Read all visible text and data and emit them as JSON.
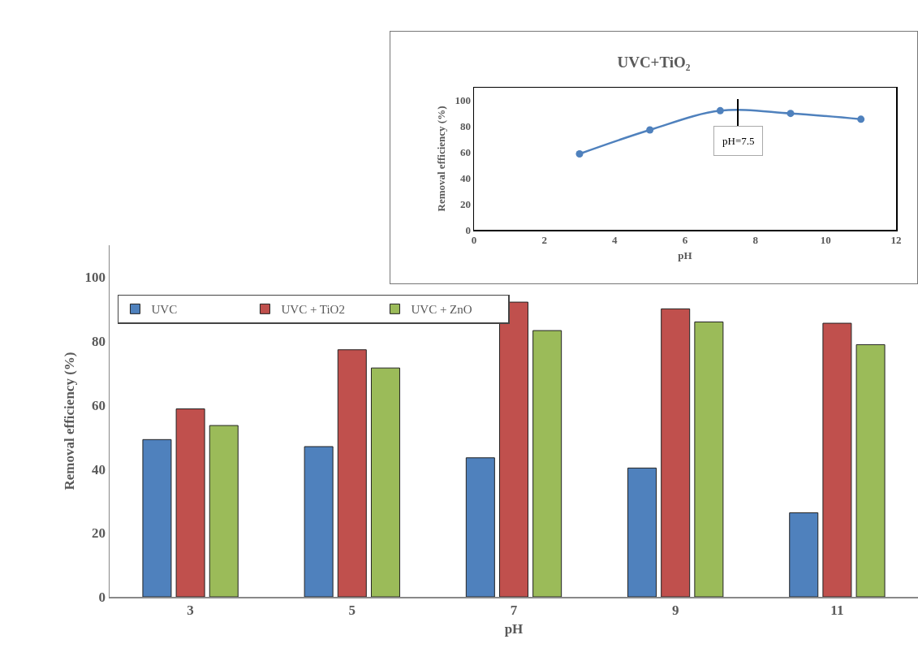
{
  "chart_data": [
    {
      "type": "line",
      "title": "UVC+TiO₂",
      "xlabel": "pH",
      "ylabel": "Removal efficiency (%)",
      "x": [
        3,
        5,
        7,
        9,
        11
      ],
      "series": [
        {
          "color": "#4f81bd",
          "values": [
            58.8,
            77.3,
            92.2,
            90.1,
            85.6
          ]
        }
      ],
      "xlim": [
        0,
        12
      ],
      "xticks": [
        0,
        2,
        4,
        6,
        8,
        10,
        12
      ],
      "ylim": [
        0,
        110
      ],
      "yticks": [
        0,
        20,
        40,
        60,
        80,
        100
      ],
      "ref_lines": [
        {
          "axis": "x",
          "value": 7.5,
          "label": "pH=7.5",
          "color": "#000000"
        }
      ],
      "grid": false,
      "legend": false,
      "marker": "circle",
      "line_style": "solid"
    },
    {
      "type": "bar",
      "xlabel": "pH",
      "ylabel": "Removal efficiency (%)",
      "categories": [
        "3",
        "5",
        "7",
        "9",
        "11"
      ],
      "series": [
        {
          "name": "UVC",
          "color": "#4f81bd",
          "values": [
            49.2,
            47.0,
            43.5,
            40.3,
            26.3
          ]
        },
        {
          "name": "UVC + TiO2",
          "color": "#c0504d",
          "values": [
            58.8,
            77.3,
            92.2,
            90.1,
            85.6
          ]
        },
        {
          "name": "UVC + ZnO",
          "color": "#9bbb59",
          "values": [
            53.6,
            71.6,
            83.3,
            86.0,
            78.9
          ]
        }
      ],
      "ylim": [
        0,
        110
      ],
      "yticks": [
        0,
        20,
        40,
        60,
        80,
        100
      ],
      "grid": false,
      "legend": "top left"
    }
  ]
}
